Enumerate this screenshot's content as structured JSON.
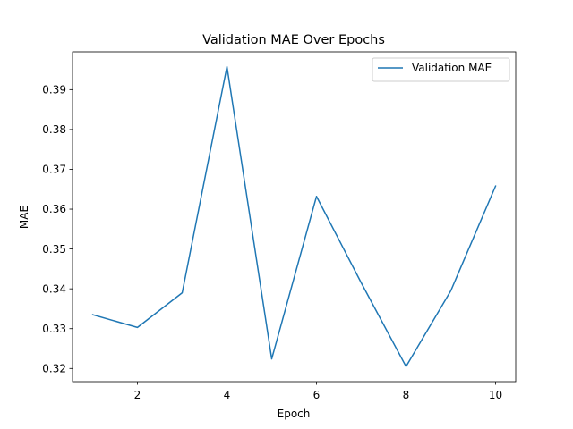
{
  "chart_data": {
    "type": "line",
    "title": "Validation MAE Over Epochs",
    "xlabel": "Epoch",
    "ylabel": "MAE",
    "x": [
      1,
      2,
      3,
      4,
      5,
      6,
      7,
      8,
      9,
      10
    ],
    "series": [
      {
        "name": "Validation MAE",
        "color": "#1f77b4",
        "values": [
          0.3335,
          0.3303,
          0.339,
          0.3958,
          0.3224,
          0.3632,
          0.3415,
          0.3205,
          0.3395,
          0.3658
        ]
      }
    ],
    "xlim": [
      0.55,
      10.45
    ],
    "ylim": [
      0.3167,
      0.3995
    ],
    "xticks": [
      2,
      4,
      6,
      8,
      10
    ],
    "xtick_labels": [
      "2",
      "4",
      "6",
      "8",
      "10"
    ],
    "yticks": [
      0.32,
      0.33,
      0.34,
      0.35,
      0.36,
      0.37,
      0.38,
      0.39
    ],
    "ytick_labels": [
      "0.32",
      "0.33",
      "0.34",
      "0.35",
      "0.36",
      "0.37",
      "0.38",
      "0.39"
    ],
    "grid": false,
    "legend_position": "upper right"
  }
}
